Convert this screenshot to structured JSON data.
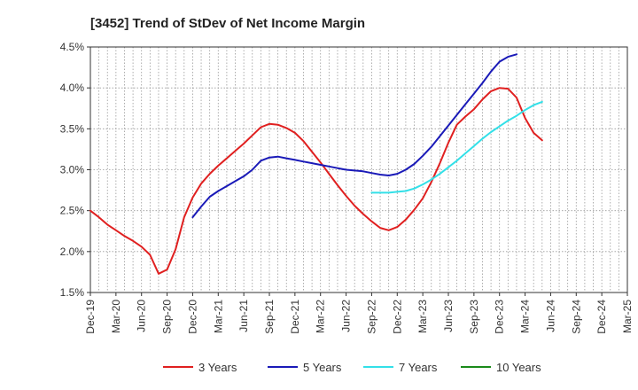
{
  "chart_data": {
    "type": "line",
    "title": "[3452]  Trend of StDev of Net Income Margin",
    "x_labels": [
      "Dec-19",
      "Mar-20",
      "Jun-20",
      "Sep-20",
      "Dec-20",
      "Mar-21",
      "Jun-21",
      "Sep-21",
      "Dec-21",
      "Mar-22",
      "Jun-22",
      "Sep-22",
      "Dec-22",
      "Mar-23",
      "Jun-23",
      "Sep-23",
      "Dec-23",
      "Mar-24",
      "Jun-24",
      "Sep-24",
      "Dec-24",
      "Mar-25"
    ],
    "y_ticks": [
      "1.5%",
      "2.0%",
      "2.5%",
      "3.0%",
      "3.5%",
      "4.0%",
      "4.5%"
    ],
    "ylim": [
      1.5,
      4.5
    ],
    "grid": true,
    "legend_position": "bottom",
    "series": [
      {
        "name": "3 Years",
        "color": "#e02020",
        "start_index": 0,
        "values": [
          2.5,
          2.42,
          2.33,
          2.26,
          2.19,
          2.13,
          2.06,
          1.96,
          1.73,
          1.78,
          2.03,
          2.42,
          2.66,
          2.83,
          2.95,
          3.05,
          3.14,
          3.23,
          3.32,
          3.42,
          3.52,
          3.56,
          3.55,
          3.51,
          3.45,
          3.35,
          3.22,
          3.09,
          2.95,
          2.81,
          2.68,
          2.56,
          2.46,
          2.37,
          2.29,
          2.26,
          2.3,
          2.39,
          2.51,
          2.65,
          2.85,
          3.08,
          3.33,
          3.55,
          3.65,
          3.74,
          3.86,
          3.96,
          4.0,
          3.99,
          3.88,
          3.63,
          3.45,
          3.36
        ]
      },
      {
        "name": "5 Years",
        "color": "#1a1ab8",
        "start_index": 12,
        "values": [
          2.42,
          2.55,
          2.67,
          2.74,
          2.8,
          2.86,
          2.92,
          3.0,
          3.11,
          3.15,
          3.16,
          3.14,
          3.12,
          3.1,
          3.08,
          3.06,
          3.04,
          3.02,
          3.0,
          2.99,
          2.98,
          2.96,
          2.94,
          2.93,
          2.95,
          3.0,
          3.07,
          3.17,
          3.28,
          3.41,
          3.54,
          3.67,
          3.8,
          3.93,
          4.06,
          4.2,
          4.32,
          4.38,
          4.41
        ]
      },
      {
        "name": "7 Years",
        "color": "#33e0e8",
        "start_index": 33,
        "values": [
          2.72,
          2.72,
          2.72,
          2.73,
          2.74,
          2.77,
          2.82,
          2.88,
          2.95,
          3.03,
          3.11,
          3.2,
          3.29,
          3.38,
          3.46,
          3.53,
          3.6,
          3.66,
          3.73,
          3.79,
          3.83
        ]
      },
      {
        "name": "10 Years",
        "color": "#1a8a1a",
        "start_index": 0,
        "values": []
      }
    ]
  }
}
